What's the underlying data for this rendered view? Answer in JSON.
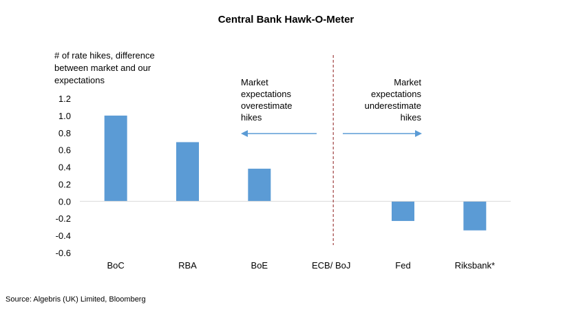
{
  "chart_data": {
    "type": "bar",
    "title": "Central Bank Hawk-O-Meter",
    "ylabel": "# of rate hikes, difference\nbetween market and our\nexpectations",
    "categories": [
      "BoC",
      "RBA",
      "BoE",
      "ECB/ BoJ",
      "Fed",
      "Riksbank*"
    ],
    "values": [
      1.0,
      0.69,
      0.38,
      0.0,
      -0.23,
      -0.34
    ],
    "ylim": [
      -0.6,
      1.2
    ],
    "yticks": [
      "1.2",
      "1.0",
      "0.8",
      "0.6",
      "0.4",
      "0.2",
      "0.0",
      "-0.2",
      "-0.4",
      "-0.6"
    ],
    "ytick_values": [
      1.2,
      1.0,
      0.8,
      0.6,
      0.4,
      0.2,
      0.0,
      -0.2,
      -0.4,
      -0.6
    ],
    "bar_color": "#5b9bd5",
    "divider_color": "#8b1a1a",
    "annotations": {
      "left": "Market\nexpectations\noverestimate\nhikes",
      "right": "Market\nexpectations\nunderestimate\nhikes"
    },
    "grid": false
  },
  "source": "Source: Algebris (UK) Limited, Bloomberg"
}
